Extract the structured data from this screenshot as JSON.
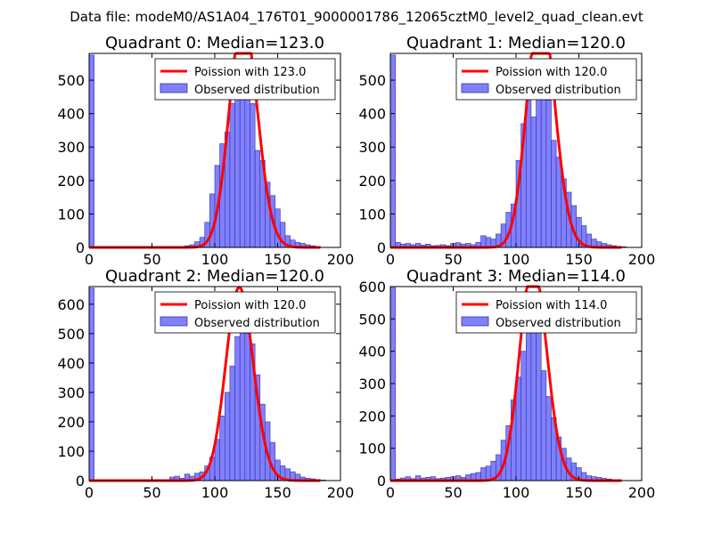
{
  "suptitle": "Data file: modeM0/AS1A04_176T01_9000001786_12065cztM0_level2_quad_clean.evt",
  "colors": {
    "bar_fill": "#8080ff",
    "bar_edge": "#3030a0",
    "poisson": "#ff0000",
    "axis": "#000000"
  },
  "chart_data": [
    {
      "type": "bar",
      "title": "Quadrant 0: Median=123.0",
      "median": 123.0,
      "xlim": [
        0,
        200
      ],
      "ylim": [
        0,
        580
      ],
      "xticks": [
        0,
        50,
        100,
        150,
        200
      ],
      "yticks": [
        0,
        100,
        200,
        300,
        400,
        500
      ],
      "bin_width": 4,
      "bin_starts": [
        0,
        68,
        76,
        80,
        84,
        88,
        92,
        96,
        100,
        104,
        108,
        112,
        116,
        120,
        124,
        128,
        132,
        136,
        140,
        144,
        148,
        152,
        156,
        160,
        164,
        168,
        172,
        176,
        180
      ],
      "counts": [
        575,
        3,
        5,
        8,
        17,
        30,
        75,
        160,
        245,
        310,
        345,
        430,
        520,
        530,
        475,
        430,
        290,
        260,
        195,
        155,
        115,
        75,
        35,
        22,
        15,
        12,
        8,
        5,
        3
      ],
      "legend": {
        "line": "Poission with 123.0",
        "bars": "Observed distribution",
        "position": "upper right"
      }
    },
    {
      "type": "bar",
      "title": "Quadrant 1: Median=120.0",
      "median": 120.0,
      "xlim": [
        0,
        200
      ],
      "ylim": [
        0,
        580
      ],
      "xticks": [
        0,
        50,
        100,
        150,
        200
      ],
      "yticks": [
        0,
        100,
        200,
        300,
        400,
        500
      ],
      "bin_width": 4,
      "bin_starts": [
        0,
        4,
        8,
        12,
        16,
        20,
        24,
        28,
        32,
        36,
        40,
        44,
        48,
        52,
        56,
        60,
        64,
        68,
        72,
        76,
        80,
        84,
        88,
        92,
        96,
        100,
        104,
        108,
        112,
        116,
        120,
        124,
        128,
        132,
        136,
        140,
        144,
        148,
        152,
        156,
        160,
        164,
        168,
        172,
        176,
        180,
        184
      ],
      "counts": [
        575,
        15,
        10,
        12,
        8,
        12,
        7,
        10,
        5,
        6,
        8,
        5,
        12,
        14,
        10,
        12,
        8,
        15,
        35,
        30,
        25,
        40,
        70,
        105,
        130,
        260,
        370,
        480,
        390,
        520,
        560,
        440,
        320,
        270,
        205,
        165,
        125,
        90,
        65,
        40,
        25,
        17,
        12,
        8,
        5,
        3,
        2
      ],
      "legend": {
        "line": "Poission with 120.0",
        "bars": "Observed distribution",
        "position": "upper right"
      }
    },
    {
      "type": "bar",
      "title": "Quadrant 2: Median=120.0",
      "median": 120.0,
      "xlim": [
        0,
        200
      ],
      "ylim": [
        0,
        660
      ],
      "xticks": [
        0,
        50,
        100,
        150,
        200
      ],
      "yticks": [
        0,
        100,
        200,
        300,
        400,
        500,
        600
      ],
      "bin_width": 4,
      "bin_starts": [
        0,
        64,
        68,
        72,
        76,
        80,
        84,
        88,
        92,
        96,
        100,
        104,
        108,
        112,
        116,
        120,
        124,
        128,
        132,
        136,
        140,
        144,
        148,
        152,
        156,
        160,
        164,
        168,
        172,
        176,
        180,
        184
      ],
      "counts": [
        655,
        12,
        15,
        8,
        22,
        15,
        25,
        30,
        50,
        80,
        140,
        220,
        300,
        390,
        490,
        560,
        500,
        465,
        360,
        260,
        200,
        130,
        70,
        50,
        40,
        30,
        22,
        12,
        8,
        6,
        4,
        2
      ],
      "legend": {
        "line": "Poission with 120.0",
        "bars": "Observed distribution",
        "position": "upper right"
      }
    },
    {
      "type": "bar",
      "title": "Quadrant 3: Median=114.0",
      "median": 114.0,
      "xlim": [
        0,
        200
      ],
      "ylim": [
        0,
        600
      ],
      "xticks": [
        0,
        50,
        100,
        150,
        200
      ],
      "yticks": [
        0,
        100,
        200,
        300,
        400,
        500,
        600
      ],
      "bin_width": 4,
      "bin_starts": [
        0,
        4,
        8,
        12,
        16,
        20,
        24,
        28,
        32,
        36,
        40,
        44,
        48,
        52,
        56,
        60,
        64,
        68,
        72,
        76,
        80,
        84,
        88,
        92,
        96,
        100,
        104,
        108,
        112,
        116,
        120,
        124,
        128,
        132,
        136,
        140,
        144,
        148,
        152,
        156,
        160,
        164,
        168,
        172,
        176,
        180
      ],
      "counts": [
        600,
        5,
        8,
        12,
        6,
        15,
        8,
        10,
        12,
        6,
        8,
        10,
        12,
        15,
        10,
        18,
        22,
        25,
        40,
        45,
        60,
        80,
        125,
        170,
        250,
        320,
        400,
        500,
        540,
        475,
        340,
        260,
        195,
        135,
        100,
        70,
        55,
        40,
        25,
        15,
        12,
        10,
        7,
        5,
        3,
        2
      ],
      "legend": {
        "line": "Poission with 114.0",
        "bars": "Observed distribution",
        "position": "upper right"
      }
    }
  ]
}
